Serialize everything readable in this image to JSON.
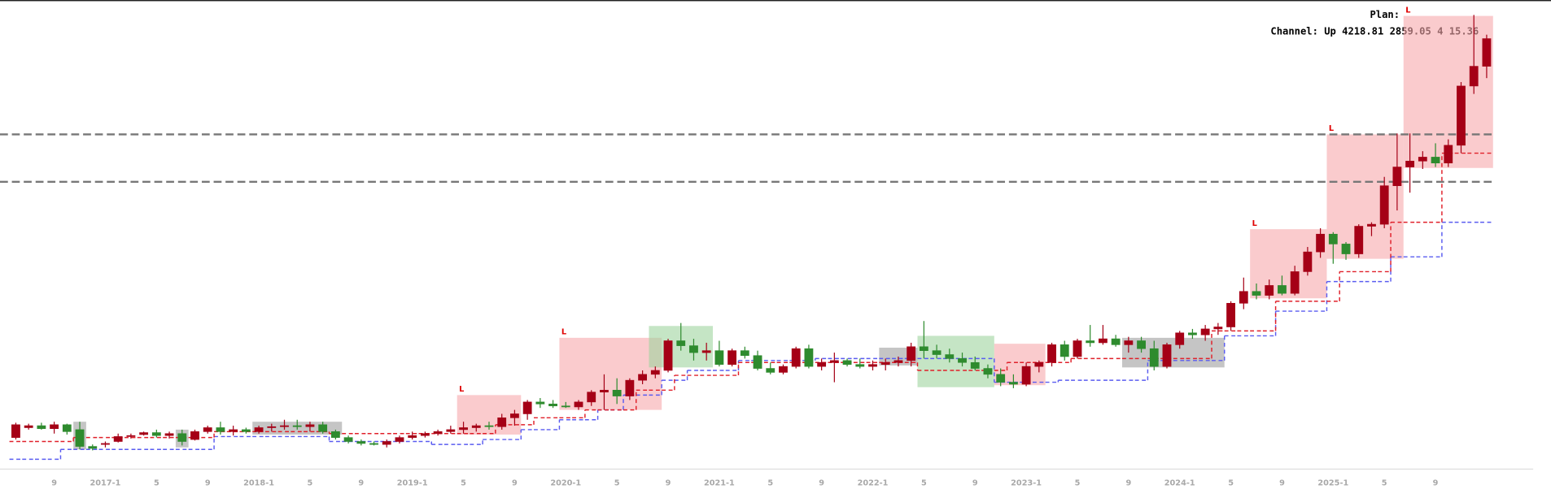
{
  "chart_data": {
    "type": "candlestick",
    "title": "Plan:",
    "subtitle": "Channel: Up 4218.81 2859.05 4 15.36",
    "categories": [
      null,
      null,
      null,
      "9",
      null,
      null,
      null,
      "2017-1",
      null,
      null,
      null,
      "5",
      null,
      null,
      null,
      "9",
      null,
      null,
      null,
      "2018-1",
      null,
      null,
      null,
      "5",
      null,
      null,
      null,
      "9",
      null,
      null,
      null,
      "2019-1",
      null,
      null,
      null,
      "5",
      null,
      null,
      null,
      "9",
      null,
      null,
      null,
      "2020-1",
      null,
      null,
      null,
      "5",
      null,
      null,
      null,
      "9",
      null,
      null,
      null,
      "2021-1",
      null,
      null,
      null,
      "5",
      null,
      null,
      null,
      "9",
      null,
      null,
      null,
      "2022-1",
      null,
      null,
      null,
      "5",
      null,
      null,
      null,
      "9",
      null,
      null,
      null,
      "2023-1",
      null,
      null,
      null,
      "5",
      null,
      null,
      null,
      "9",
      null,
      null,
      null,
      "2024-1",
      null,
      null,
      null,
      "5",
      null,
      null,
      null,
      "9",
      null,
      null,
      null,
      "2025-1",
      null,
      null,
      null,
      "5",
      null,
      null,
      null,
      "9",
      null,
      null,
      null,
      null
    ],
    "candles": [
      [
        32,
        47,
        30,
        45
      ],
      [
        42,
        46,
        40,
        44
      ],
      [
        44,
        47,
        40,
        41
      ],
      [
        41,
        48,
        36,
        45
      ],
      [
        45,
        46,
        35,
        38
      ],
      [
        40,
        48,
        20,
        23
      ],
      [
        23,
        25,
        19,
        21
      ],
      [
        25,
        28,
        22,
        26
      ],
      [
        28,
        36,
        27,
        33
      ],
      [
        33,
        36,
        31,
        34
      ],
      [
        35,
        38,
        34,
        37
      ],
      [
        37,
        40,
        32,
        34
      ],
      [
        34,
        38,
        31,
        36
      ],
      [
        36,
        40,
        24,
        28
      ],
      [
        30,
        40,
        29,
        38
      ],
      [
        38,
        44,
        36,
        42
      ],
      [
        42,
        48,
        35,
        38
      ],
      [
        38,
        44,
        34,
        40
      ],
      [
        40,
        42,
        36,
        38
      ],
      [
        38,
        44,
        36,
        42
      ],
      [
        42,
        46,
        38,
        43
      ],
      [
        43,
        50,
        40,
        44
      ],
      [
        44,
        50,
        40,
        43
      ],
      [
        43,
        48,
        38,
        45
      ],
      [
        45,
        48,
        36,
        38
      ],
      [
        38,
        40,
        30,
        32
      ],
      [
        32,
        34,
        26,
        28
      ],
      [
        28,
        30,
        24,
        26
      ],
      [
        26,
        28,
        24,
        25
      ],
      [
        25,
        30,
        22,
        28
      ],
      [
        28,
        34,
        26,
        32
      ],
      [
        32,
        38,
        30,
        34
      ],
      [
        34,
        38,
        32,
        36
      ],
      [
        36,
        40,
        34,
        38
      ],
      [
        38,
        44,
        36,
        40
      ],
      [
        40,
        48,
        36,
        42
      ],
      [
        42,
        46,
        38,
        44
      ],
      [
        44,
        48,
        40,
        43
      ],
      [
        43,
        56,
        40,
        52
      ],
      [
        52,
        60,
        44,
        56
      ],
      [
        56,
        70,
        50,
        68
      ],
      [
        68,
        72,
        62,
        66
      ],
      [
        66,
        70,
        62,
        64
      ],
      [
        64,
        68,
        62,
        63
      ],
      [
        63,
        70,
        60,
        68
      ],
      [
        68,
        80,
        64,
        78
      ],
      [
        78,
        96,
        60,
        80
      ],
      [
        80,
        92,
        66,
        74
      ],
      [
        74,
        92,
        70,
        90
      ],
      [
        90,
        100,
        86,
        96
      ],
      [
        96,
        104,
        92,
        100
      ],
      [
        100,
        132,
        98,
        130
      ],
      [
        130,
        148,
        120,
        125
      ],
      [
        125,
        132,
        110,
        118
      ],
      [
        118,
        128,
        110,
        120
      ],
      [
        120,
        130,
        104,
        106
      ],
      [
        106,
        122,
        104,
        120
      ],
      [
        120,
        124,
        112,
        115
      ],
      [
        115,
        120,
        100,
        102
      ],
      [
        102,
        108,
        96,
        98
      ],
      [
        98,
        106,
        96,
        104
      ],
      [
        104,
        124,
        102,
        122
      ],
      [
        122,
        126,
        102,
        104
      ],
      [
        104,
        112,
        100,
        108
      ],
      [
        108,
        118,
        88,
        110
      ],
      [
        110,
        112,
        104,
        106
      ],
      [
        106,
        112,
        102,
        104
      ],
      [
        104,
        110,
        100,
        106
      ],
      [
        106,
        112,
        100,
        108
      ],
      [
        108,
        114,
        104,
        110
      ],
      [
        110,
        128,
        104,
        124
      ],
      [
        124,
        150,
        112,
        120
      ],
      [
        120,
        126,
        112,
        116
      ],
      [
        116,
        122,
        108,
        112
      ],
      [
        112,
        118,
        104,
        108
      ],
      [
        108,
        114,
        100,
        102
      ],
      [
        102,
        106,
        92,
        96
      ],
      [
        96,
        102,
        84,
        88
      ],
      [
        88,
        96,
        82,
        86
      ],
      [
        86,
        108,
        84,
        104
      ],
      [
        104,
        110,
        98,
        108
      ],
      [
        108,
        128,
        104,
        126
      ],
      [
        126,
        130,
        110,
        114
      ],
      [
        114,
        132,
        112,
        130
      ],
      [
        130,
        146,
        124,
        128
      ],
      [
        128,
        146,
        126,
        132
      ],
      [
        132,
        136,
        124,
        126
      ],
      [
        126,
        134,
        118,
        130
      ],
      [
        130,
        134,
        118,
        122
      ],
      [
        122,
        130,
        100,
        104
      ],
      [
        104,
        128,
        102,
        126
      ],
      [
        126,
        140,
        122,
        138
      ],
      [
        138,
        142,
        132,
        136
      ],
      [
        136,
        146,
        130,
        142
      ],
      [
        142,
        148,
        136,
        144
      ],
      [
        144,
        170,
        140,
        168
      ],
      [
        168,
        194,
        162,
        180
      ],
      [
        180,
        188,
        172,
        176
      ],
      [
        176,
        192,
        172,
        186
      ],
      [
        186,
        196,
        176,
        178
      ],
      [
        178,
        206,
        176,
        200
      ],
      [
        200,
        225,
        196,
        220
      ],
      [
        220,
        244,
        214,
        238
      ],
      [
        238,
        240,
        208,
        228
      ],
      [
        228,
        230,
        212,
        218
      ],
      [
        218,
        248,
        214,
        246
      ],
      [
        246,
        250,
        236,
        248
      ],
      [
        248,
        296,
        244,
        287
      ],
      [
        287,
        340,
        262,
        306
      ],
      [
        306,
        340,
        280,
        312
      ],
      [
        312,
        322,
        304,
        316
      ],
      [
        316,
        330,
        306,
        310
      ],
      [
        310,
        334,
        306,
        328
      ],
      [
        328,
        392,
        320,
        388
      ],
      [
        388,
        460,
        380,
        408
      ],
      [
        408,
        440,
        396,
        436
      ]
    ],
    "up_color": "#a50016",
    "down_color": "#2e8b2e",
    "lines": [
      {
        "color": "#5a5cf0",
        "values": [
          10,
          10,
          10,
          10,
          20,
          20,
          20,
          20,
          20,
          20,
          20,
          20,
          20,
          20,
          20,
          20,
          33,
          33,
          33,
          33,
          33,
          33,
          33,
          33,
          33,
          28,
          28,
          28,
          28,
          28,
          28,
          28,
          28,
          25,
          25,
          25,
          25,
          30,
          30,
          30,
          40,
          40,
          40,
          50,
          50,
          50,
          60,
          60,
          75,
          75,
          75,
          90,
          90,
          100,
          100,
          100,
          100,
          110,
          110,
          110,
          110,
          110,
          110,
          112,
          112,
          112,
          112,
          112,
          112,
          112,
          112,
          112,
          112,
          112,
          112,
          112,
          112,
          88,
          88,
          88,
          88,
          88,
          90,
          90,
          90,
          90,
          90,
          90,
          90,
          110,
          110,
          110,
          110,
          110,
          110,
          135,
          135,
          135,
          135,
          160,
          160,
          160,
          160,
          190,
          190,
          190,
          190,
          190,
          215,
          215,
          215,
          215,
          250,
          250,
          250,
          250
        ]
      },
      {
        "color": "#e0202a",
        "values": [
          28,
          28,
          28,
          28,
          28,
          32,
          32,
          32,
          32,
          32,
          32,
          32,
          32,
          32,
          32,
          32,
          38,
          38,
          38,
          38,
          38,
          38,
          38,
          38,
          38,
          36,
          36,
          36,
          36,
          36,
          36,
          36,
          36,
          36,
          36,
          36,
          36,
          36,
          45,
          45,
          45,
          52,
          52,
          52,
          52,
          60,
          60,
          60,
          60,
          80,
          80,
          80,
          95,
          95,
          95,
          95,
          95,
          108,
          108,
          108,
          108,
          108,
          108,
          108,
          108,
          108,
          108,
          108,
          108,
          108,
          108,
          100,
          100,
          100,
          100,
          100,
          100,
          100,
          108,
          108,
          108,
          108,
          108,
          112,
          112,
          112,
          112,
          112,
          112,
          112,
          112,
          112,
          112,
          112,
          140,
          140,
          140,
          140,
          140,
          170,
          170,
          170,
          170,
          170,
          200,
          200,
          200,
          200,
          250,
          250,
          250,
          250,
          320,
          320,
          320,
          320
        ]
      }
    ],
    "levels": [
      339,
      291
    ],
    "level_color": "#777777",
    "zones": [
      {
        "start": 5,
        "end": 5,
        "top": 48,
        "bottom": 20,
        "color": "#9e9e9e"
      },
      {
        "start": 13,
        "end": 13,
        "top": 40,
        "bottom": 22,
        "color": "#9e9e9e"
      },
      {
        "start": 19,
        "end": 25,
        "top": 48,
        "bottom": 35,
        "color": "#9e9e9e"
      },
      {
        "start": 35,
        "end": 39,
        "top": 75,
        "bottom": 35,
        "color": "#f7a8ab",
        "label": "L"
      },
      {
        "start": 43,
        "end": 50,
        "top": 133,
        "bottom": 60,
        "color": "#f7a8ab",
        "label": "L"
      },
      {
        "start": 50,
        "end": 54,
        "top": 145,
        "bottom": 103,
        "color": "#9fd39f"
      },
      {
        "start": 68,
        "end": 70,
        "top": 123,
        "bottom": 105,
        "color": "#9e9e9e"
      },
      {
        "start": 71,
        "end": 76,
        "top": 135,
        "bottom": 83,
        "color": "#9fd39f"
      },
      {
        "start": 77,
        "end": 80,
        "top": 127,
        "bottom": 85,
        "color": "#f7a8ab"
      },
      {
        "start": 87,
        "end": 94,
        "top": 133,
        "bottom": 103,
        "color": "#9e9e9e"
      },
      {
        "start": 97,
        "end": 102,
        "top": 243,
        "bottom": 173,
        "color": "#f7a8ab",
        "label": "L"
      },
      {
        "start": 103,
        "end": 108,
        "top": 339,
        "bottom": 213,
        "color": "#f7a8ab",
        "label": "L"
      },
      {
        "start": 109,
        "end": 115,
        "top": 459,
        "bottom": 305,
        "color": "#f7a8ab",
        "label": "L"
      }
    ],
    "ylim": [
      0,
      475
    ],
    "grid": false
  }
}
